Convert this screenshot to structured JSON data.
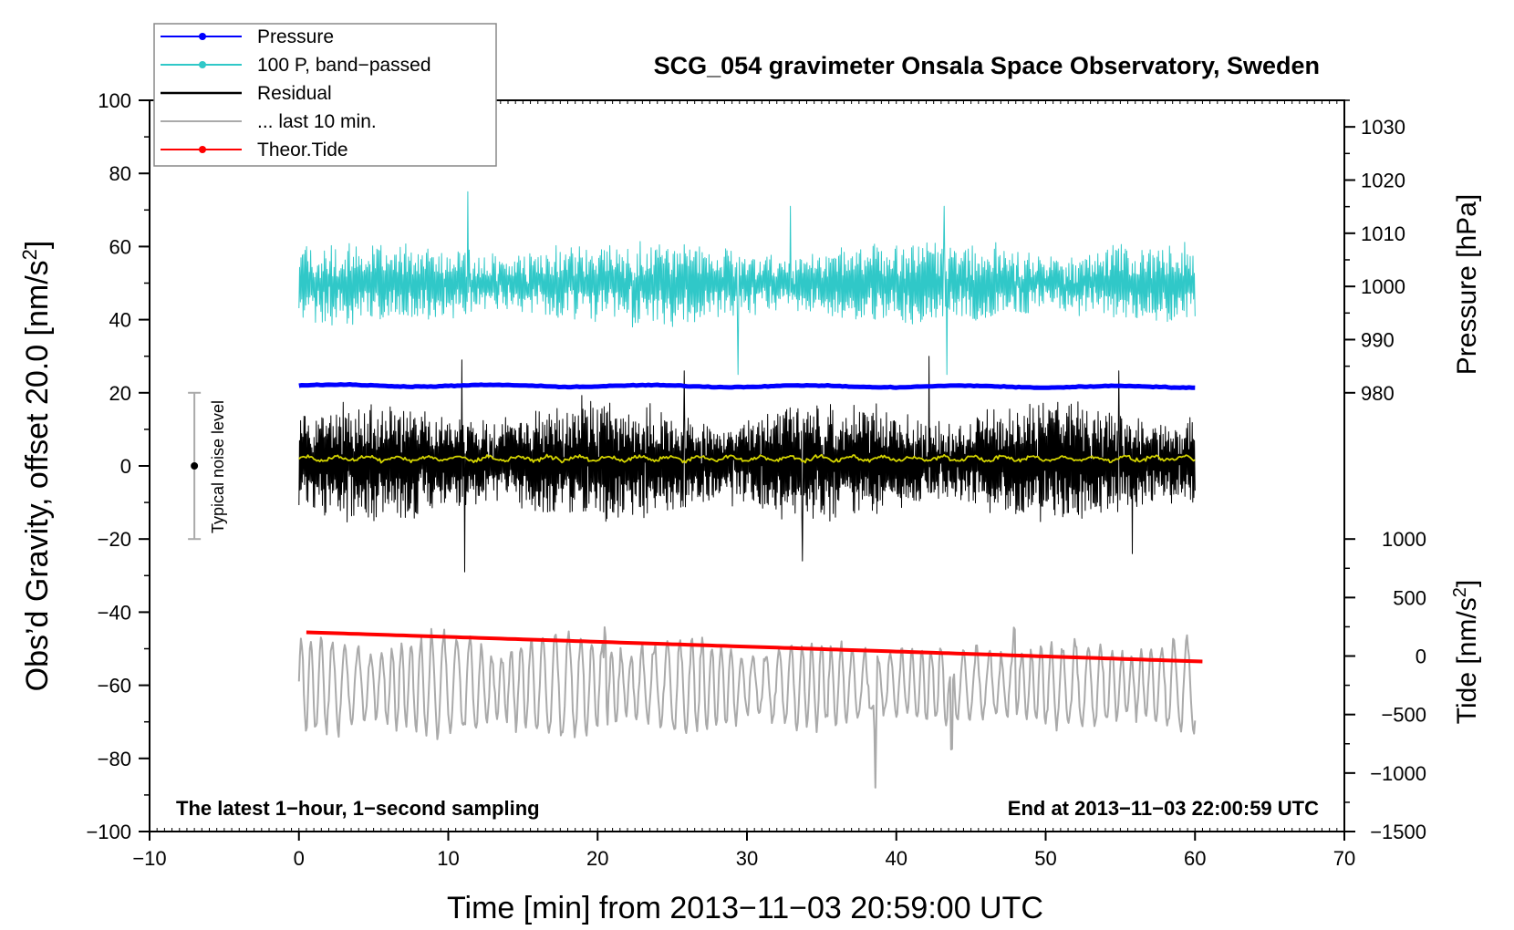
{
  "chart_data": {
    "type": "line",
    "title": "SCG_054 gravimeter Onsala Space Observatory, Sweden",
    "xlabel": "Time [min] from 2013−11−03 20:59:00 UTC",
    "ylabel_prefix": "Obs’d Gravity, offset 20.0 [nm/s",
    "ylabel_sup": "2",
    "ylabel_suffix": "]",
    "right_pressure_label": "Pressure [hPa]",
    "right_tide_prefix": "Tide [nm/s",
    "right_tide_sup": "2",
    "right_tide_suffix": "]",
    "xlim": [
      -10,
      70
    ],
    "ylim": [
      -100,
      100
    ],
    "x_ticks": [
      -10,
      0,
      10,
      20,
      30,
      40,
      50,
      60,
      70
    ],
    "x_tick_labels": [
      "−10",
      "0",
      "10",
      "20",
      "30",
      "40",
      "50",
      "60",
      "70"
    ],
    "y_ticks": [
      100,
      80,
      60,
      40,
      20,
      0,
      -20,
      -40,
      -60,
      -80,
      -100
    ],
    "y_tick_labels": [
      "100",
      "80",
      "60",
      "40",
      "20",
      "0",
      "−20",
      "−40",
      "−60",
      "−80",
      "−100"
    ],
    "pressure_axis": {
      "ticks": [
        1030,
        1020,
        1010,
        1000,
        990,
        980
      ],
      "tick_labels": [
        "1030",
        "1020",
        "1010",
        "1000",
        "990",
        "980"
      ],
      "value_at_y20": 980,
      "value_at_y100": 1035
    },
    "tide_axis": {
      "ticks": [
        1000,
        500,
        0,
        -500,
        -1000,
        -1500
      ],
      "tick_labels": [
        "1000",
        "500",
        "0",
        "−500",
        "−1000",
        "−1500"
      ],
      "value_at_ym100": -1500,
      "value_at_ym20": 1000
    },
    "legend": [
      {
        "name": "Pressure",
        "color": "#0000ff",
        "marker": true
      },
      {
        "name": "100 P, band−passed",
        "color": "#30c8c8",
        "marker": true
      },
      {
        "name": "Residual",
        "color": "#000000",
        "marker": false
      },
      {
        "name": "... last 10 min.",
        "color": "#aaaaaa",
        "marker": false
      },
      {
        "name": "Theor.Tide",
        "color": "#ff0000",
        "marker": true
      }
    ],
    "series": [
      {
        "name": "Pressure",
        "color": "#0000ff",
        "x_range": [
          0,
          60
        ],
        "y_start": 22.0,
        "y_end": 21.6,
        "unit": "gravity-axis"
      },
      {
        "name": "100 P, band−passed",
        "color": "#30c8c8",
        "x_range": [
          0,
          60
        ],
        "center": 50,
        "amplitude": 9,
        "spikes": [
          [
            11.3,
            75
          ],
          [
            29.4,
            25
          ],
          [
            32.9,
            71
          ],
          [
            43.2,
            71
          ],
          [
            43.4,
            25
          ]
        ]
      },
      {
        "name": "Residual",
        "color": "#000000",
        "x_range": [
          0,
          60
        ],
        "center": 1,
        "amplitude": 12,
        "spikes": [
          [
            10.9,
            29
          ],
          [
            11.1,
            -29
          ],
          [
            25.8,
            26
          ],
          [
            33.7,
            -26
          ],
          [
            42.2,
            30
          ],
          [
            54.9,
            26
          ],
          [
            55.8,
            -24
          ]
        ]
      },
      {
        "name": "Residual mean",
        "color": "#d4d400",
        "x_range": [
          0,
          60
        ],
        "value": 2
      },
      {
        "name": "... last 10 min.",
        "color": "#aaaaaa",
        "x_range": [
          0,
          60
        ],
        "center": -60,
        "amplitude": 14,
        "peaks": [
          [
            20.5,
            -38
          ],
          [
            38.6,
            -88
          ],
          [
            43.7,
            -88
          ],
          [
            47.9,
            -39
          ]
        ]
      },
      {
        "name": "Theor.Tide",
        "color": "#ff0000",
        "x_range": [
          0.5,
          60.5
        ],
        "y_start": -45.5,
        "y_end": -53.5
      }
    ],
    "noise_bar": {
      "label": "Typical noise level",
      "x": -7,
      "center": 0,
      "half_range": 20
    },
    "annotations": {
      "left": "The latest 1−hour, 1−second sampling",
      "right": "End at 2013−11−03 22:00:59 UTC"
    }
  }
}
